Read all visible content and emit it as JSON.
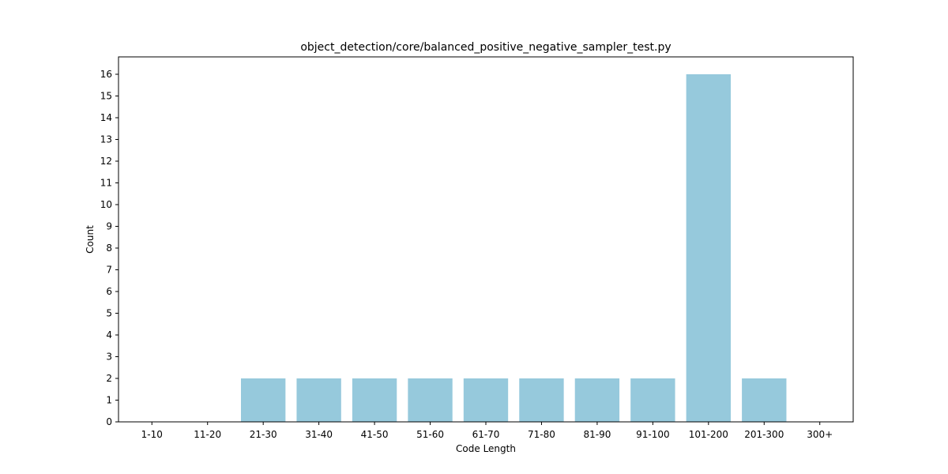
{
  "chart_data": {
    "type": "bar",
    "title": "object_detection/core/balanced_positive_negative_sampler_test.py",
    "xlabel": "Code Length",
    "ylabel": "Count",
    "categories": [
      "1-10",
      "11-20",
      "21-30",
      "31-40",
      "41-50",
      "51-60",
      "61-70",
      "71-80",
      "81-90",
      "91-100",
      "101-200",
      "201-300",
      "300+"
    ],
    "values": [
      0,
      0,
      2,
      2,
      2,
      2,
      2,
      2,
      2,
      2,
      16,
      2,
      0
    ],
    "ylim": [
      0,
      16.8
    ],
    "yticks": [
      0,
      1,
      2,
      3,
      4,
      5,
      6,
      7,
      8,
      9,
      10,
      11,
      12,
      13,
      14,
      15,
      16
    ],
    "bar_color": "#96c9dc",
    "grid": false,
    "legend": "none"
  }
}
